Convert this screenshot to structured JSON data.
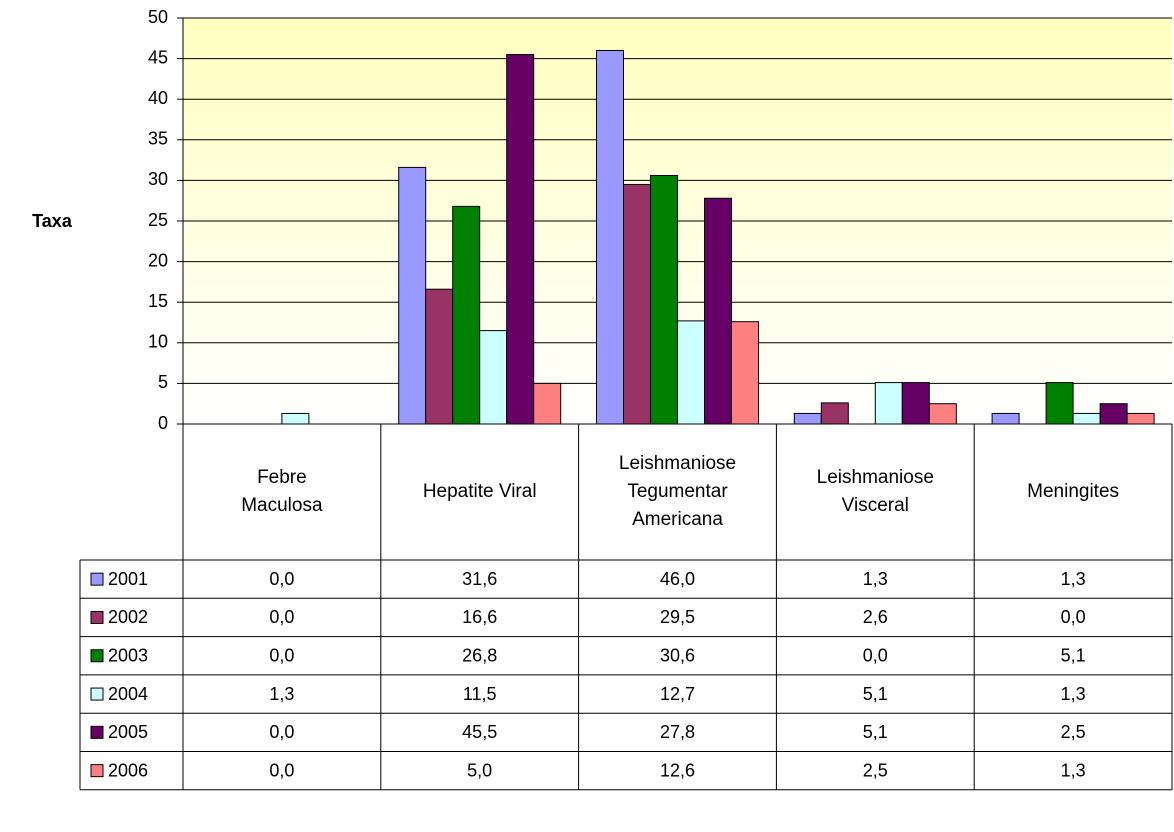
{
  "chart_data": {
    "type": "bar",
    "y_label": "Taxa",
    "categories": [
      "Febre Maculosa",
      "Hepatite Viral",
      "Leishmaniose Tegumentar Americana",
      "Leishmaniose Visceral",
      "Meningites"
    ],
    "series": [
      {
        "name": "2001",
        "color": "#9999ff",
        "values": [
          0.0,
          31.6,
          46.0,
          1.3,
          1.3
        ],
        "value_labels": [
          "0,0",
          "31,6",
          "46,0",
          "1,3",
          "1,3"
        ]
      },
      {
        "name": "2002",
        "color": "#993366",
        "values": [
          0.0,
          16.6,
          29.5,
          2.6,
          0.0
        ],
        "value_labels": [
          "0,0",
          "16,6",
          "29,5",
          "2,6",
          "0,0"
        ]
      },
      {
        "name": "2003",
        "color": "#008000",
        "values": [
          0.0,
          26.8,
          30.6,
          0.0,
          5.1
        ],
        "value_labels": [
          "0,0",
          "26,8",
          "30,6",
          "0,0",
          "5,1"
        ]
      },
      {
        "name": "2004",
        "color": "#ccffff",
        "values": [
          1.3,
          11.5,
          12.7,
          5.1,
          1.3
        ],
        "value_labels": [
          "1,3",
          "11,5",
          "12,7",
          "5,1",
          "1,3"
        ]
      },
      {
        "name": "2005",
        "color": "#660066",
        "values": [
          0.0,
          45.5,
          27.8,
          5.1,
          2.5
        ],
        "value_labels": [
          "0,0",
          "45,5",
          "27,8",
          "5,1",
          "2,5"
        ]
      },
      {
        "name": "2006",
        "color": "#ff8080",
        "values": [
          0.0,
          5.0,
          12.6,
          2.5,
          1.3
        ],
        "value_labels": [
          "0,0",
          "5,0",
          "12,6",
          "2,5",
          "1,3"
        ]
      }
    ],
    "ylim": [
      0,
      50
    ],
    "yticks": [
      0,
      5,
      10,
      15,
      20,
      25,
      30,
      35,
      40,
      45,
      50
    ],
    "grid": true
  }
}
